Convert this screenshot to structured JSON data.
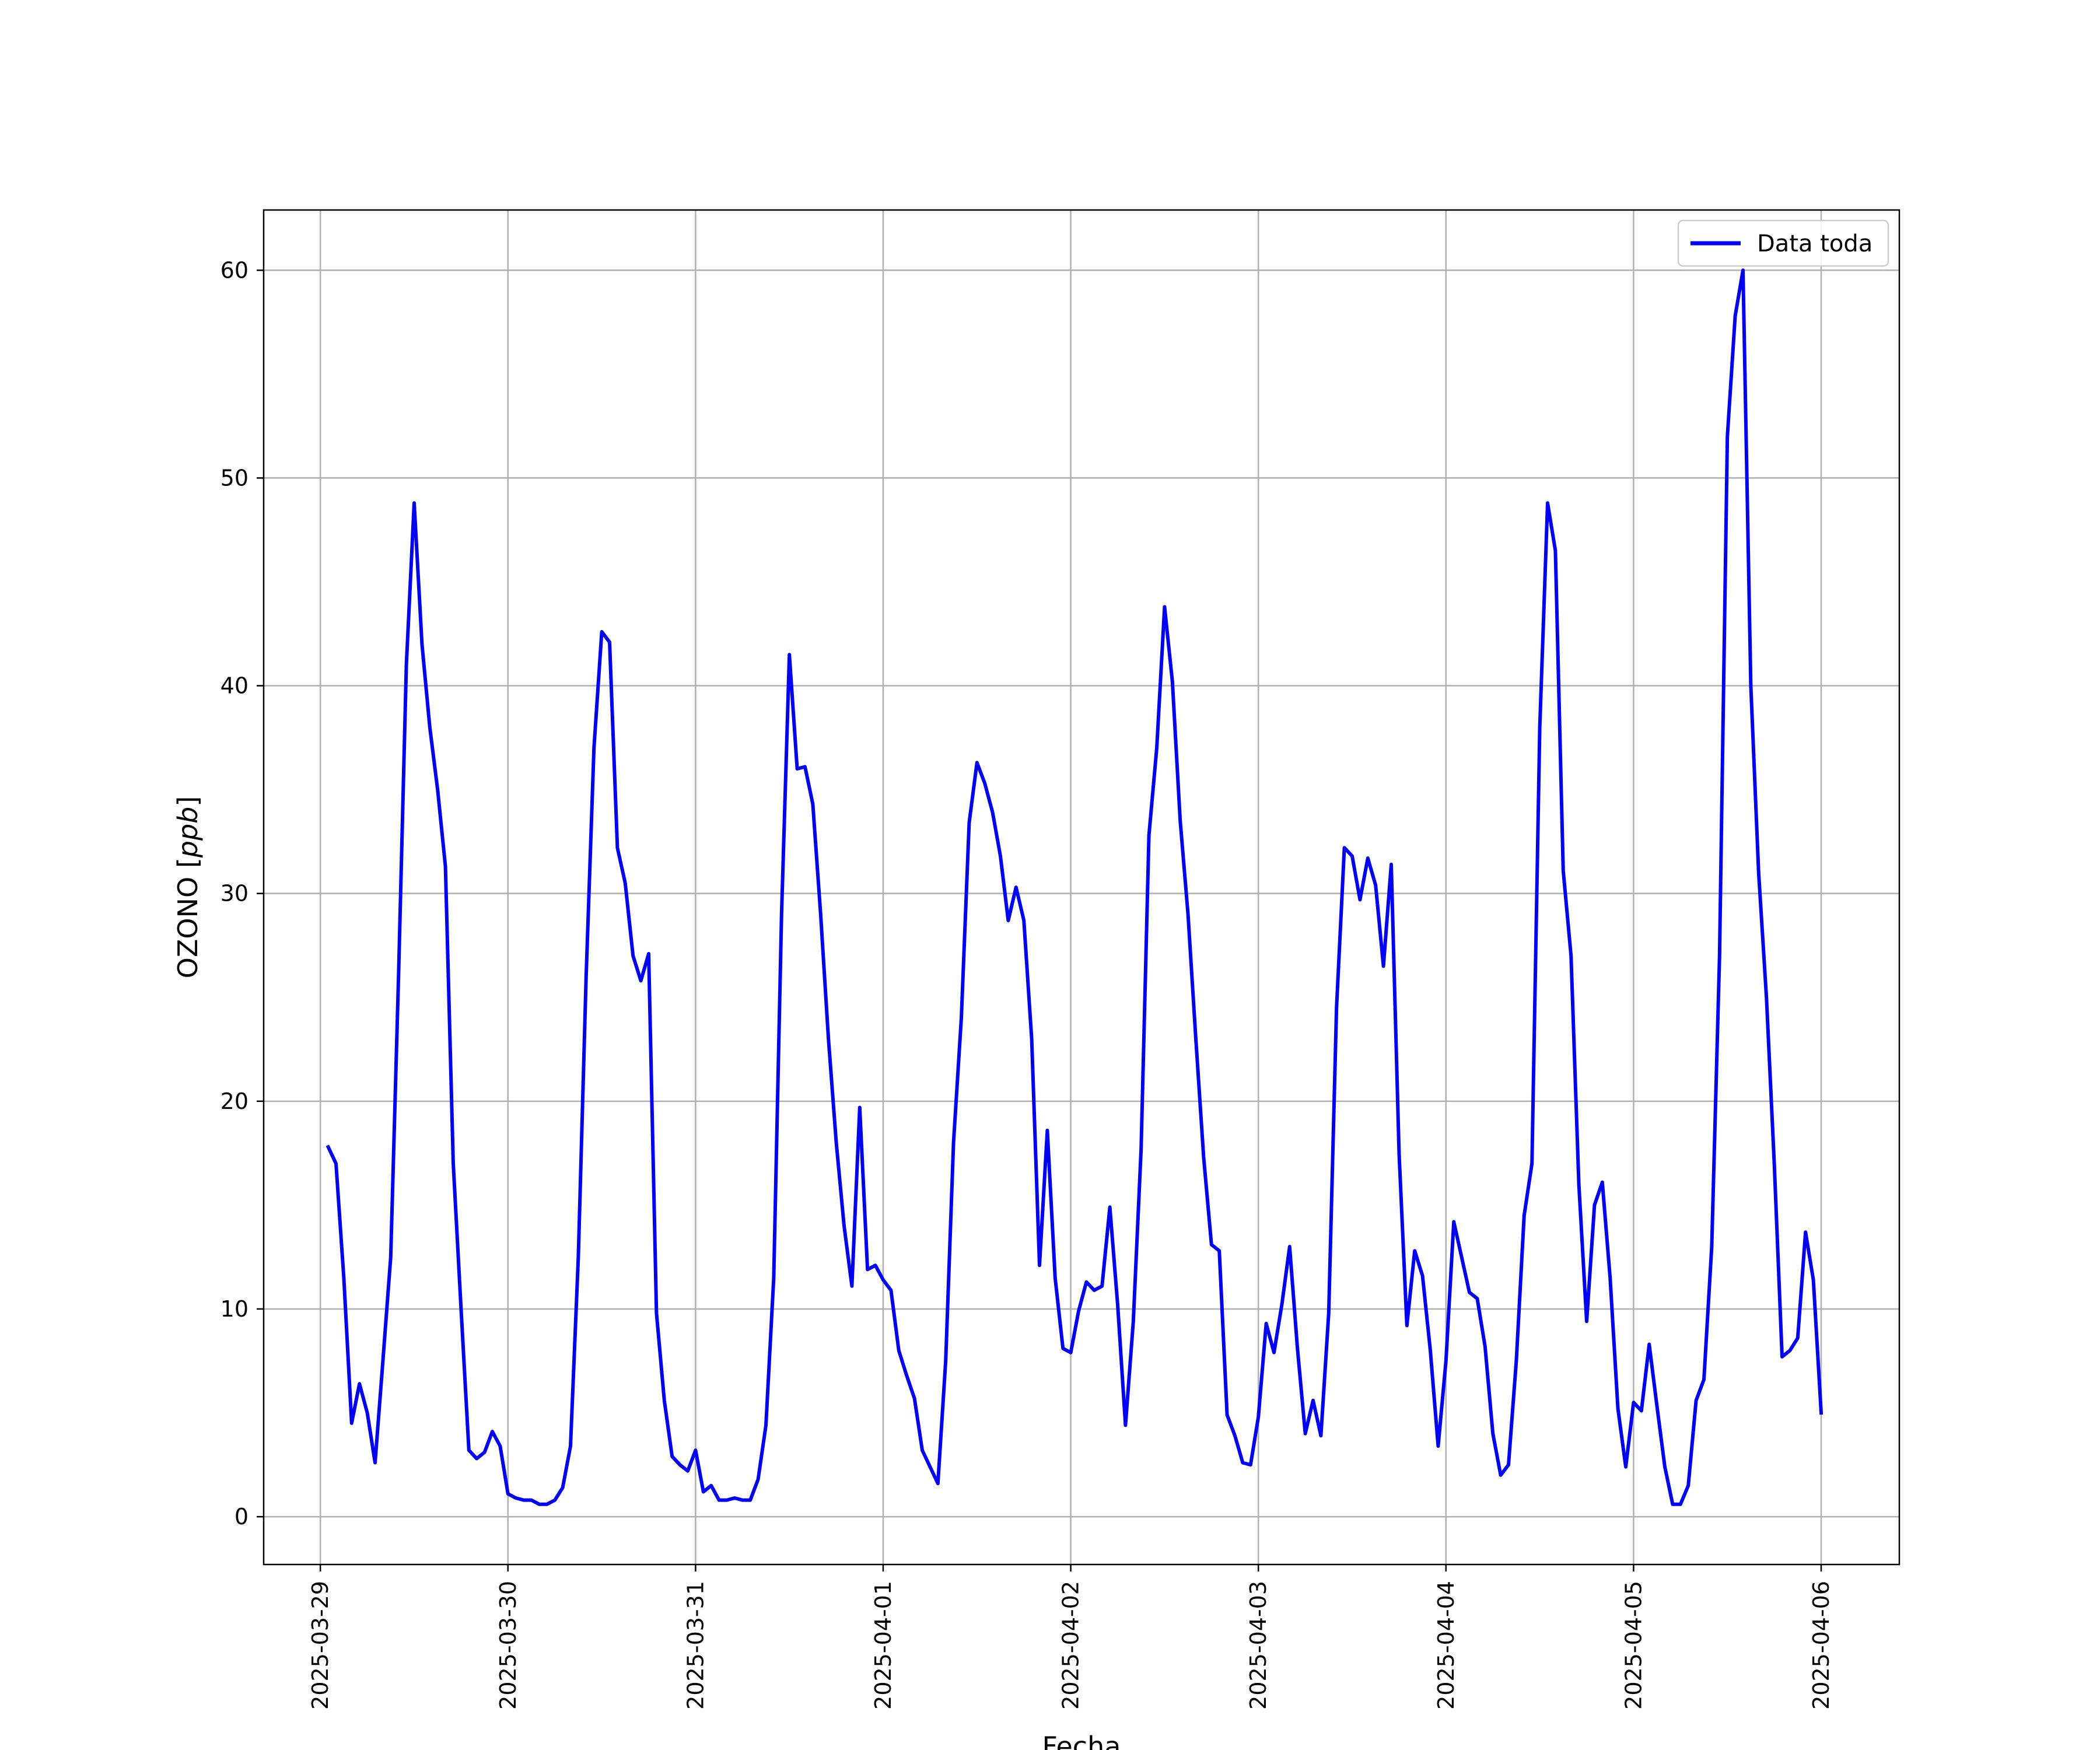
{
  "chart_data": {
    "type": "line",
    "xlabel": "Fecha",
    "ylabel_prefix": "OZONO [",
    "ylabel_unit": "ppb",
    "ylabel_suffix": "]",
    "ylim": [
      -2.3,
      62.9
    ],
    "xlim": [
      "2025-03-28 16:45",
      "2025-04-06 10:00"
    ],
    "yticks": [
      0,
      10,
      20,
      30,
      40,
      50,
      60
    ],
    "xticks": [
      "2025-03-29",
      "2025-03-30",
      "2025-03-31",
      "2025-04-01",
      "2025-04-02",
      "2025-04-03",
      "2025-04-04",
      "2025-04-05",
      "2025-04-06"
    ],
    "grid": true,
    "legend_position": "upper-right",
    "line_color": "#0000ff",
    "series": [
      {
        "name": "Data toda",
        "start": "2025-03-29 01:00",
        "interval_hours": 1,
        "values": [
          17.8,
          17.0,
          11.5,
          4.5,
          6.4,
          5.0,
          2.6,
          7.5,
          12.5,
          26.0,
          41.0,
          48.8,
          42.0,
          38.0,
          35.0,
          31.3,
          17.0,
          10.0,
          3.2,
          2.8,
          3.1,
          4.1,
          3.4,
          1.1,
          0.9,
          0.8,
          0.8,
          0.6,
          0.6,
          0.8,
          1.4,
          3.4,
          12.5,
          26.0,
          37.0,
          42.6,
          42.1,
          32.2,
          30.5,
          27.0,
          25.8,
          27.1,
          9.8,
          5.6,
          2.9,
          2.5,
          2.2,
          3.2,
          1.2,
          1.5,
          0.8,
          0.8,
          0.9,
          0.8,
          0.8,
          1.8,
          4.4,
          11.5,
          29.0,
          41.5,
          36.0,
          36.1,
          34.3,
          29.0,
          23.0,
          18.0,
          14.0,
          11.1,
          19.7,
          11.9,
          12.1,
          11.4,
          10.9,
          8.0,
          6.8,
          5.7,
          3.2,
          2.4,
          1.6,
          7.5,
          18.0,
          24.0,
          33.4,
          36.3,
          35.3,
          33.9,
          31.8,
          28.7,
          30.3,
          28.7,
          23.0,
          12.1,
          18.6,
          11.5,
          8.1,
          7.9,
          9.9,
          11.3,
          10.9,
          11.1,
          14.9,
          10.2,
          4.4,
          9.4,
          17.7,
          32.8,
          37.0,
          43.8,
          40.2,
          33.5,
          29.0,
          23.0,
          17.3,
          13.1,
          12.8,
          4.9,
          3.9,
          2.6,
          2.5,
          4.8,
          9.3,
          7.9,
          10.2,
          13.0,
          8.1,
          4.0,
          5.6,
          3.9,
          9.8,
          24.5,
          32.2,
          31.8,
          29.7,
          31.7,
          30.4,
          26.5,
          31.4,
          17.5,
          9.2,
          12.8,
          11.6,
          8.0,
          3.4,
          7.5,
          14.2,
          12.5,
          10.8,
          10.5,
          8.2,
          4.0,
          2.0,
          2.5,
          7.5,
          14.5,
          17.0,
          38.0,
          48.8,
          46.5,
          31.1,
          27.0,
          16.0,
          9.4,
          15.0,
          16.1,
          11.5,
          5.2,
          2.4,
          5.5,
          5.1,
          8.3,
          5.3,
          2.4,
          0.6,
          0.6,
          1.5,
          5.6,
          6.6,
          13.0,
          27.0,
          52.0,
          57.8,
          60.0,
          40.0,
          31.0,
          25.0,
          17.0,
          7.7,
          8.0,
          8.6,
          13.7,
          11.4,
          5.0
        ]
      }
    ]
  }
}
